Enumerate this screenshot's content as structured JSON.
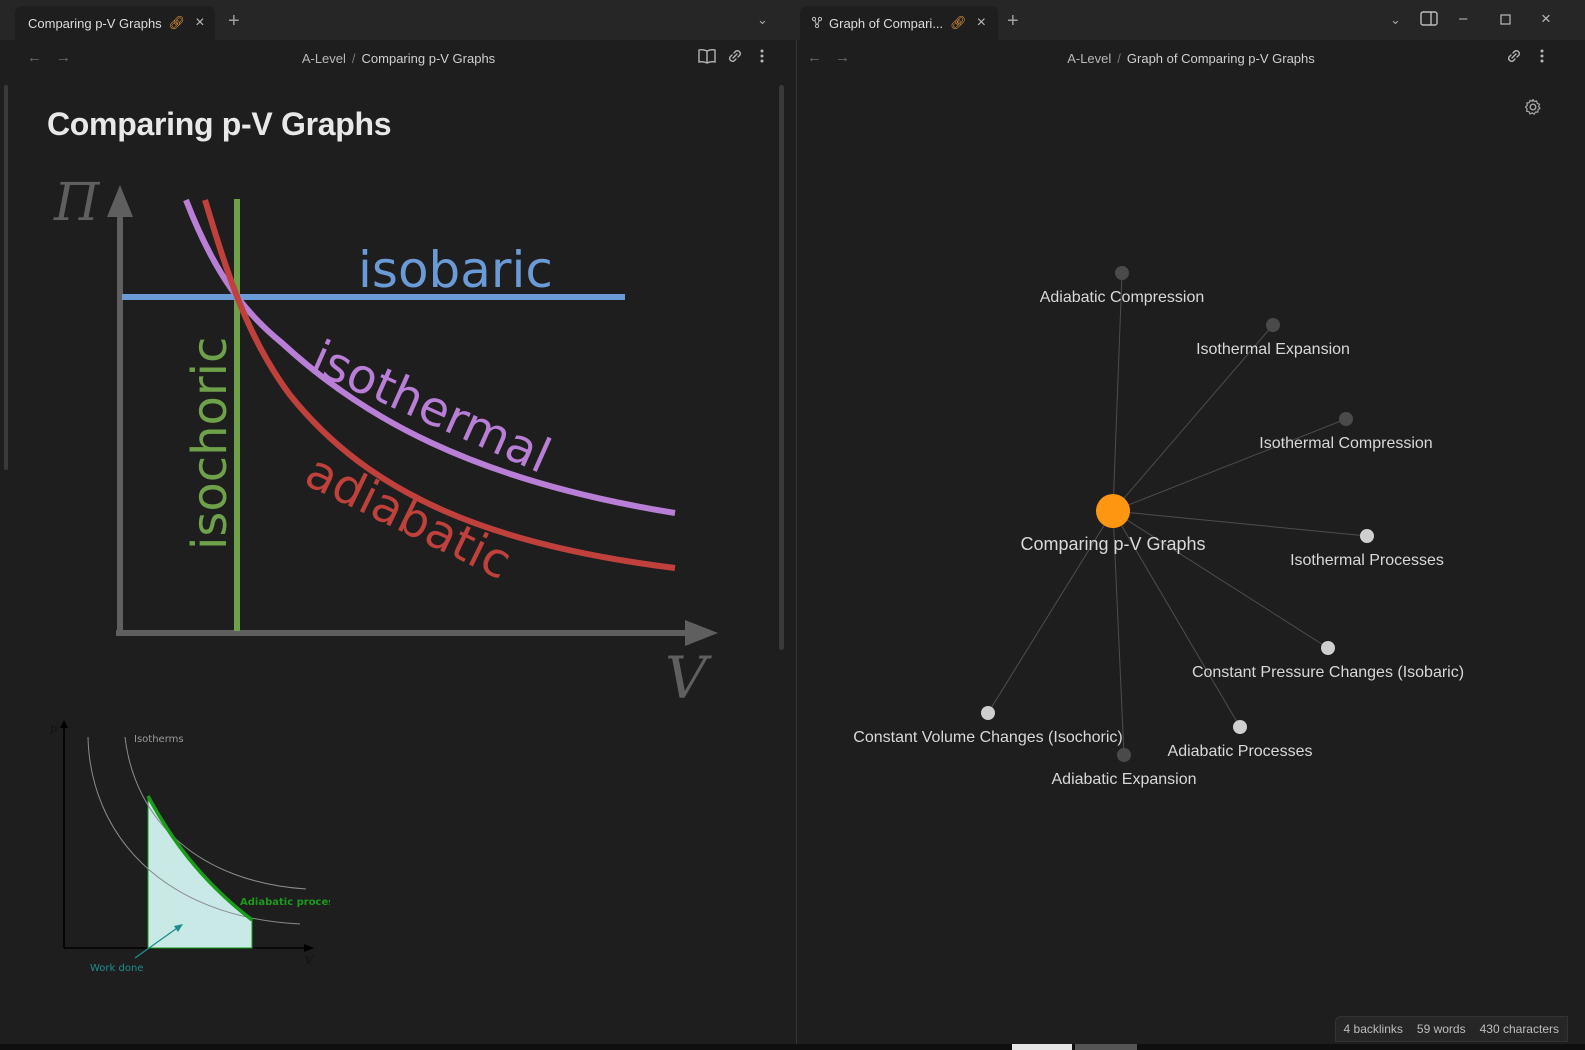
{
  "left_tab": {
    "title": "Comparing p-V Graphs"
  },
  "right_tab": {
    "title": "Graph of Compari..."
  },
  "left_breadcrumb": {
    "parent": "A-Level",
    "separator": "/",
    "current": "Comparing p-V Graphs"
  },
  "right_breadcrumb": {
    "parent": "A-Level",
    "separator": "/",
    "current": "Graph of Comparing p-V Graphs"
  },
  "note": {
    "title": "Comparing p-V Graphs"
  },
  "pv_diagram": {
    "y_axis": "Π",
    "x_axis": "V",
    "labels": {
      "isobaric": "isobaric",
      "isothermal": "isothermal",
      "adiabatic": "adiabatic",
      "isochoric": "isochoric"
    },
    "colors": {
      "isobaric": "#6a9bd6",
      "isothermal": "#b97fd6",
      "adiabatic": "#c0413c",
      "isochoric": "#6fa14a",
      "axis": "#5f5f5f"
    }
  },
  "adiabatic_diagram": {
    "p_label": "p",
    "v_label": "V",
    "isotherms_label": "Isotherms",
    "process_label": "Adiabatic process",
    "work_label": "Work done",
    "colors": {
      "process": "#1a9b1a",
      "fill": "#c8e9e6",
      "work": "#1d8e8e"
    }
  },
  "graph": {
    "center_node": {
      "label": "Comparing p-V Graphs",
      "color": "#ff9612"
    },
    "nodes": [
      {
        "label": "Adiabatic Compression",
        "color": "#4a4a4a"
      },
      {
        "label": "Isothermal Expansion",
        "color": "#4a4a4a"
      },
      {
        "label": "Isothermal Compression",
        "color": "#4a4a4a"
      },
      {
        "label": "Isothermal Processes",
        "color": "#cfcfcf"
      },
      {
        "label": "Constant Pressure Changes (Isobaric)",
        "color": "#cfcfcf"
      },
      {
        "label": "Adiabatic Processes",
        "color": "#cfcfcf"
      },
      {
        "label": "Adiabatic Expansion",
        "color": "#4a4a4a"
      },
      {
        "label": "Constant Volume Changes (Isochoric)",
        "color": "#cfcfcf"
      }
    ]
  },
  "status_bar": {
    "backlinks": "4 backlinks",
    "words": "59 words",
    "characters": "430 characters"
  }
}
